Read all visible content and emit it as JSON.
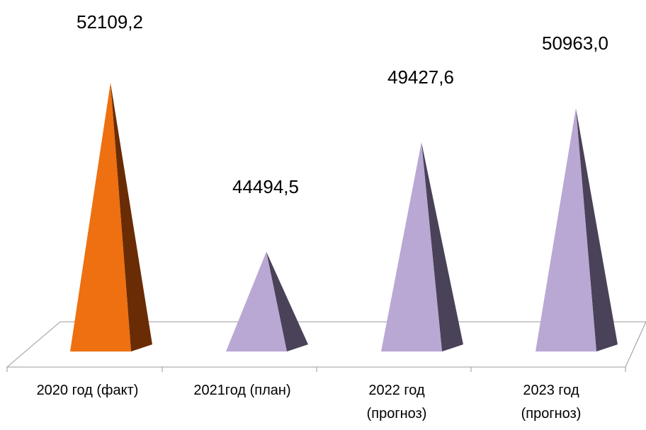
{
  "chart_data": {
    "type": "bar",
    "shape": "3d-pyramid",
    "categories": [
      [
        "2020 год (факт)"
      ],
      [
        "2021год (план)"
      ],
      [
        "2022 год",
        "(прогноз)"
      ],
      [
        "2023 год",
        "(прогноз)"
      ]
    ],
    "values": [
      52109.2,
      44494.5,
      49427.6,
      50963.0
    ],
    "data_labels": [
      "52109,2",
      "44494,5",
      "49427,6",
      "50963,0"
    ],
    "colors": [
      {
        "front": "#ee7010",
        "side": "#6a2c04"
      },
      {
        "front": "#b9a8d4",
        "side": "#4a4258"
      },
      {
        "front": "#b9a8d4",
        "side": "#4a4258"
      },
      {
        "front": "#b9a8d4",
        "side": "#4a4258"
      }
    ],
    "floor_color": "#ffffff",
    "grid": false,
    "legend": "none"
  }
}
